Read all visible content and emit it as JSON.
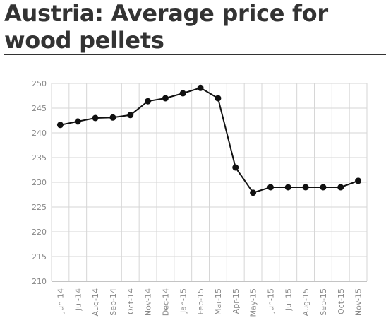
{
  "title": "Austria: Average price for wood pellets",
  "colors": {
    "line": "#111111",
    "grid": "#d6d6d6",
    "axis": "#888888",
    "text": "#888888",
    "title": "#333333"
  },
  "chart_data": {
    "type": "line",
    "categories": [
      "Jun-14",
      "Jul-14",
      "Aug-14",
      "Sep-14",
      "Oct-14",
      "Nov-14",
      "Dec-14",
      "Jan-15",
      "Feb-15",
      "Mar-15",
      "Apr-15",
      "May-15",
      "Jun-15",
      "Jul-15",
      "Aug-15",
      "Sep-15",
      "Oct-15",
      "Nov-15"
    ],
    "values": [
      241.6,
      242.3,
      243.0,
      243.1,
      243.6,
      246.4,
      247.0,
      248.0,
      249.1,
      247.0,
      233.0,
      227.9,
      229.0,
      229.0,
      229.0,
      229.0,
      229.0,
      230.3
    ],
    "ylim": [
      210,
      250
    ],
    "yticks": [
      210,
      215,
      220,
      225,
      230,
      235,
      240,
      245,
      250
    ],
    "grid": true,
    "xlabel": "",
    "ylabel": ""
  }
}
